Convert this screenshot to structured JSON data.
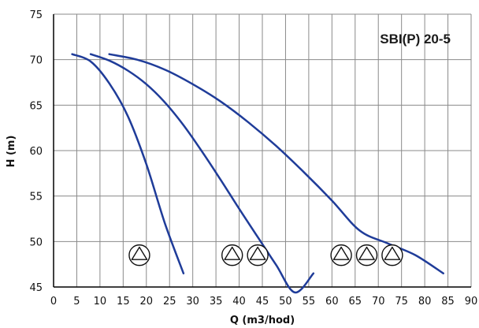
{
  "chart_data": {
    "type": "line",
    "title": "SBI(P) 20-5",
    "xlabel": "Q (m3/hod)",
    "ylabel": "H (m)",
    "xlim": [
      0,
      90
    ],
    "ylim": [
      45,
      75
    ],
    "x_ticks": [
      "0",
      "5",
      "10",
      "15",
      "20",
      "25",
      "30",
      "35",
      "40",
      "45",
      "50",
      "55",
      "60",
      "65",
      "70",
      "75",
      "80",
      "85",
      "90"
    ],
    "y_ticks": [
      "45",
      "50",
      "55",
      "60",
      "65",
      "70",
      "75"
    ],
    "grid": true,
    "line_color": "#1f3c99",
    "series": [
      {
        "pumps": 1,
        "points": [
          [
            4,
            70.6
          ],
          [
            8,
            69.8
          ],
          [
            12,
            67.4
          ],
          [
            16,
            63.8
          ],
          [
            20,
            58.5
          ],
          [
            24,
            52.0
          ],
          [
            28,
            46.5
          ]
        ]
      },
      {
        "pumps": 2,
        "points": [
          [
            8,
            70.6
          ],
          [
            12,
            69.9
          ],
          [
            16,
            68.8
          ],
          [
            20,
            67.3
          ],
          [
            24,
            65.3
          ],
          [
            28,
            62.8
          ],
          [
            32,
            59.9
          ],
          [
            36,
            56.8
          ],
          [
            40,
            53.6
          ],
          [
            44,
            50.5
          ],
          [
            48,
            47.4
          ],
          [
            52,
            44.4
          ],
          [
            56,
            46.5
          ]
        ]
      },
      {
        "pumps": 3,
        "points": [
          [
            12,
            70.6
          ],
          [
            18,
            70.0
          ],
          [
            24,
            68.9
          ],
          [
            30,
            67.3
          ],
          [
            36,
            65.4
          ],
          [
            42,
            63.1
          ],
          [
            48,
            60.5
          ],
          [
            54,
            57.6
          ],
          [
            60,
            54.5
          ],
          [
            66,
            51.2
          ],
          [
            72,
            49.8
          ],
          [
            78,
            48.5
          ],
          [
            84,
            46.5
          ]
        ]
      }
    ],
    "pump_markers": [
      {
        "x": 18.5,
        "y": 48.5,
        "icon": "pump-triangle-icon"
      },
      {
        "x": 38.5,
        "y": 48.5,
        "icon": "pump-triangle-icon"
      },
      {
        "x": 44,
        "y": 48.5,
        "icon": "pump-triangle-icon"
      },
      {
        "x": 62,
        "y": 48.5,
        "icon": "pump-triangle-icon"
      },
      {
        "x": 67.5,
        "y": 48.5,
        "icon": "pump-triangle-icon"
      },
      {
        "x": 73,
        "y": 48.5,
        "icon": "pump-triangle-icon"
      }
    ]
  }
}
